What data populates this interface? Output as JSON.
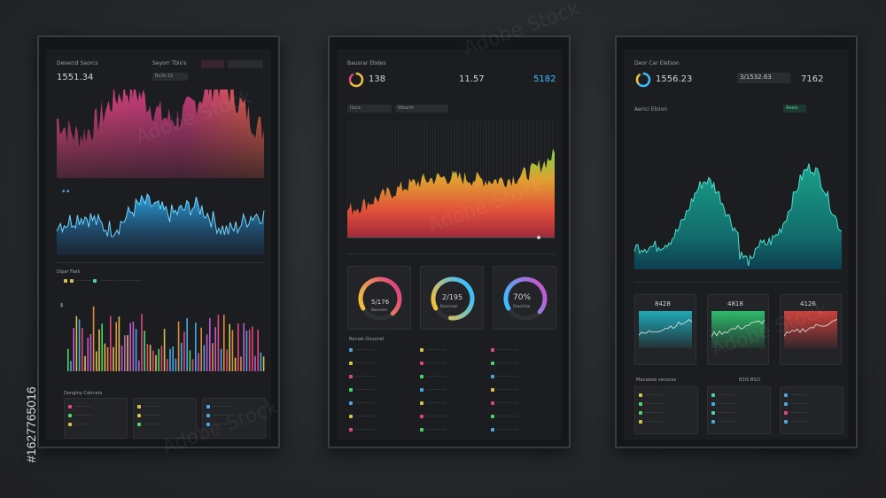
{
  "credit": "#1627765016",
  "watermark": "Adobe Stock",
  "screens": [
    {
      "header_left": "Desercd Saorcs",
      "header_mid": "Seyorr Tbis's",
      "stat1": "1551.34",
      "stat2": "Bu3s 15",
      "legend_a": "Dipar Fialk",
      "footer_title": "Denginy Catrcets"
    },
    {
      "header": "Bausrar Ebdes",
      "stat1": "138",
      "stat2": "11.57",
      "stat3": "5182",
      "tab_a": "Iluca",
      "tab_b": "Wbarth",
      "gauges": [
        {
          "label": "5/176",
          "sub": "Basceem",
          "value": 0.72
        },
        {
          "label": "2/195",
          "sub": "Boarcasal",
          "value": 0.85
        },
        {
          "label": "70%",
          "sub": "Fbaarlicar",
          "value": 0.7
        }
      ],
      "list_title": "Reniak Oovanel"
    },
    {
      "header": "Deor Car Eletson",
      "stat1": "1556.23",
      "stat2": "3/1532.63",
      "stat3": "7162",
      "subtitle": "Aerici Eloion",
      "tag": "Aeais",
      "cards": [
        {
          "value": "8428",
          "color": "#1fb8c8"
        },
        {
          "value": "4818",
          "color": "#2ecc71"
        },
        {
          "value": "4126",
          "color": "#e0443c"
        }
      ],
      "footer_title": "Maniatee venoces",
      "footer_val": "B3IS BS2I"
    }
  ]
}
